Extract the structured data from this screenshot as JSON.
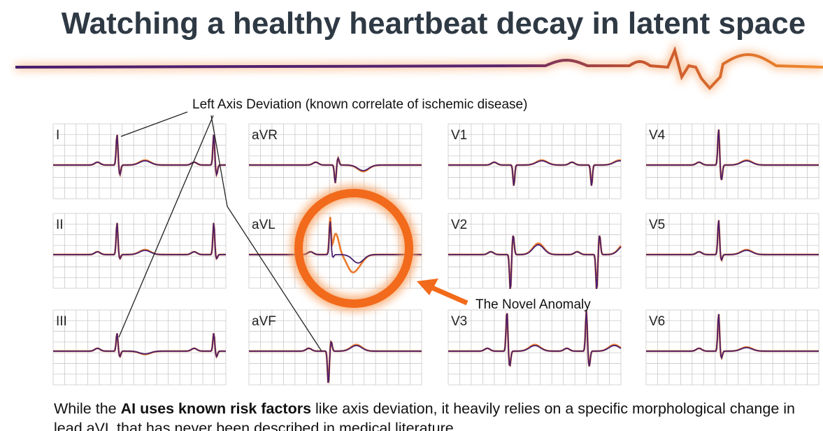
{
  "title": "Watching a healthy heartbeat decay in latent space",
  "annotations": {
    "axis_deviation": "Left Axis Deviation (known correlate of ischemic disease)",
    "novel_anomaly": "The Novel Anomaly"
  },
  "leads": [
    {
      "label": "I"
    },
    {
      "label": "aVR"
    },
    {
      "label": "V1"
    },
    {
      "label": "V4"
    },
    {
      "label": "II"
    },
    {
      "label": "aVL"
    },
    {
      "label": "V2"
    },
    {
      "label": "V5"
    },
    {
      "label": "III"
    },
    {
      "label": "aVF"
    },
    {
      "label": "V3"
    },
    {
      "label": "V6"
    }
  ],
  "caption": {
    "lead_in": "While the",
    "emphasis": "AI uses known risk factors",
    "rest": "like axis deviation, it heavily relies on a specific morphological change in lead aVL that has never been described in medical literature."
  }
}
